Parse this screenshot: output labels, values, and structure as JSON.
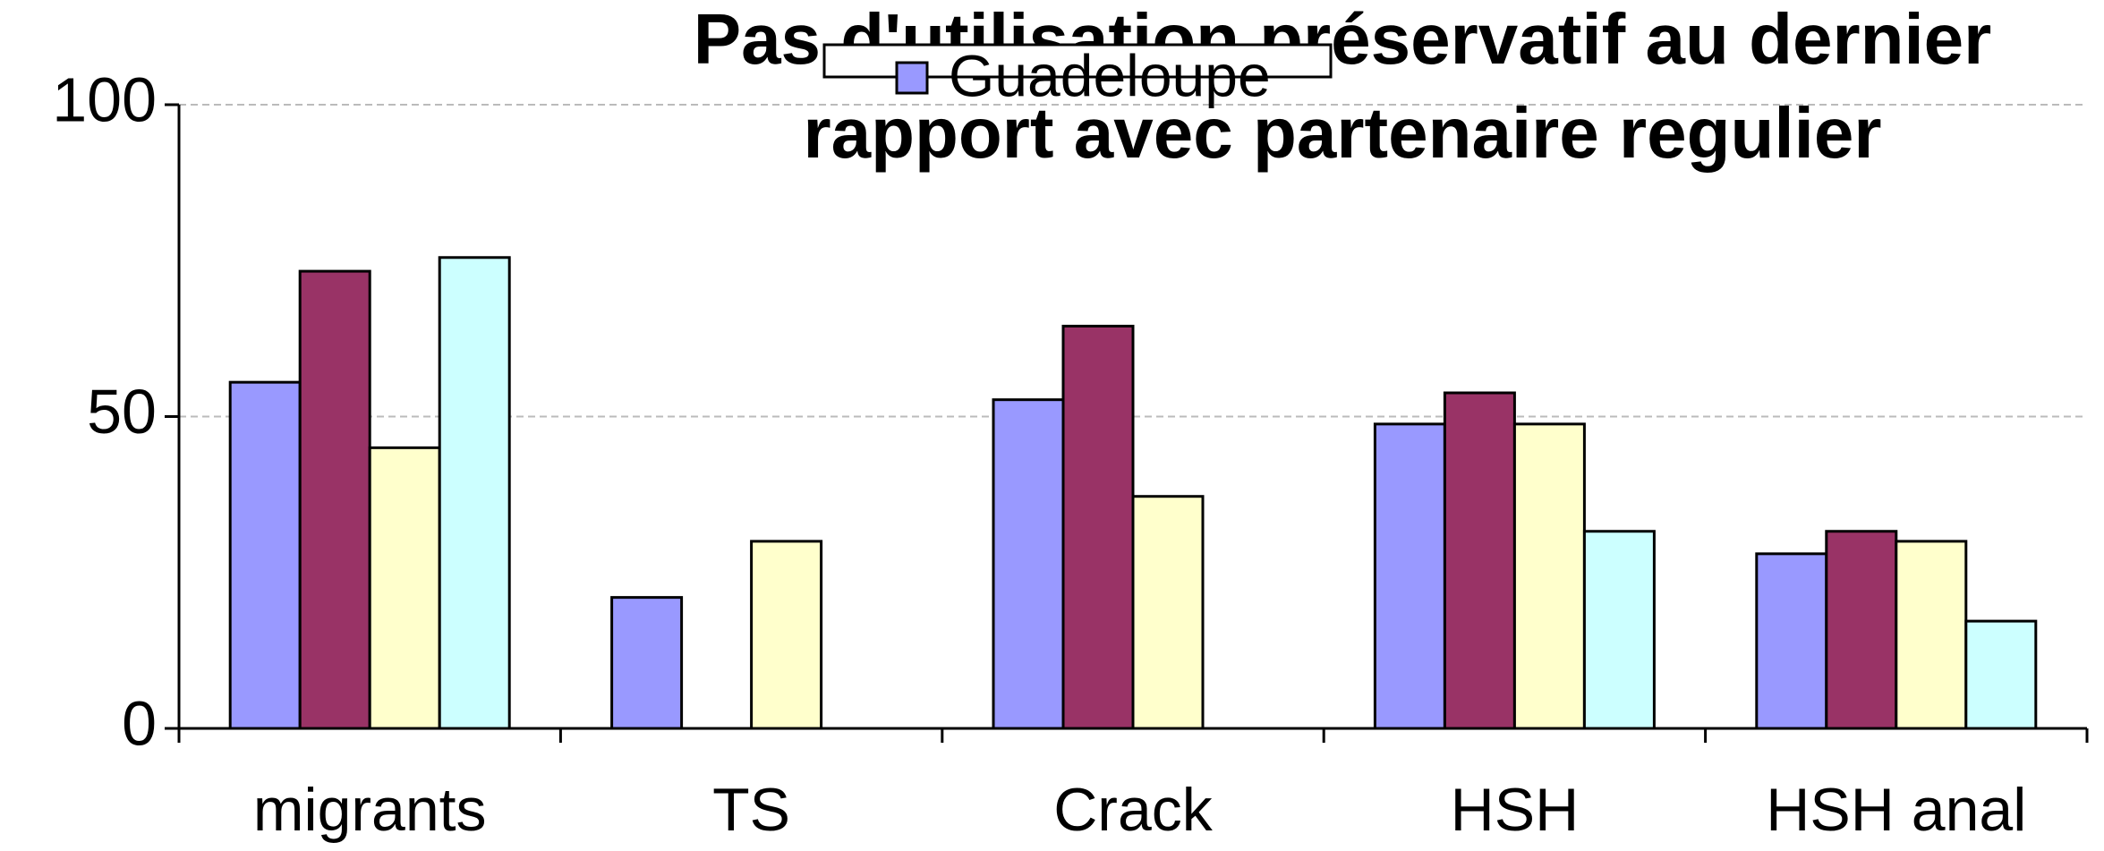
{
  "chart_data": {
    "type": "bar",
    "title": [
      "Pas d'utilisation préservatif au dernier",
      "rapport avec partenaire regulier"
    ],
    "categories": [
      "migrants",
      "TS",
      "Crack",
      "HSH",
      "HSH anal"
    ],
    "series": [
      {
        "name": "Guadeloupe",
        "color": "#9999ff",
        "values": [
          55.5,
          21,
          52.7,
          48.8,
          28
        ]
      },
      {
        "color": "#993366",
        "values": [
          73.3,
          null,
          64.5,
          53.8,
          31.6
        ]
      },
      {
        "color": "#ffffcc",
        "values": [
          45,
          30,
          37.2,
          48.8,
          30
        ]
      },
      {
        "color": "#ccffff",
        "values": [
          75.5,
          null,
          null,
          31.6,
          17.2
        ]
      }
    ],
    "ylim": [
      0,
      100
    ],
    "yticks": [
      0,
      50,
      100
    ],
    "grid": true,
    "legend": "top"
  }
}
